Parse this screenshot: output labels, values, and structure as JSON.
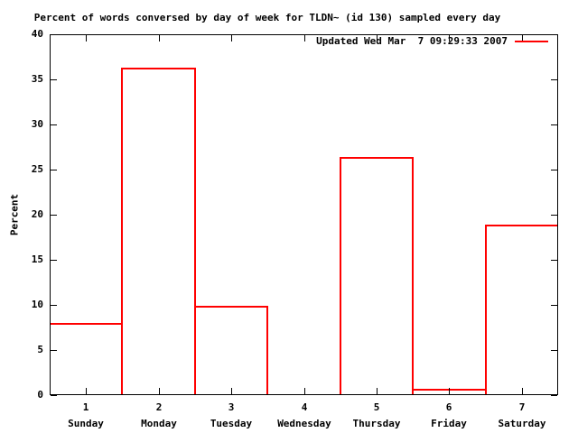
{
  "colors": {
    "series": "#ff0000",
    "frame": "#000000",
    "background": "#ffffff",
    "text": "#000000"
  },
  "chart_data": {
    "type": "bar",
    "bar_style": "outlined-histogram",
    "title": "Percent of words conversed by day of week for TLDN~ (id 130) sampled every day",
    "xlabel": "",
    "ylabel": "Percent",
    "legend": "Updated Wed Mar  7 09:29:33 2007",
    "legend_position": "top-right",
    "grid": false,
    "categories": [
      "1",
      "2",
      "3",
      "4",
      "5",
      "6",
      "7"
    ],
    "category_names": [
      "Sunday",
      "Monday",
      "Tuesday",
      "Wednesday",
      "Thursday",
      "Friday",
      "Saturday"
    ],
    "values": [
      7.9,
      36.2,
      9.8,
      0,
      26.3,
      0.6,
      18.8
    ],
    "xlim": [
      0.5,
      7.5
    ],
    "ylim": [
      0,
      40
    ],
    "ytick_step": 5
  }
}
